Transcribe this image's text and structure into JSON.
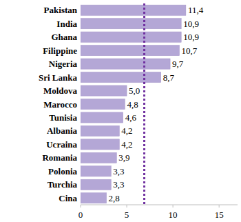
{
  "chart_data": {
    "type": "bar",
    "orientation": "horizontal",
    "categories": [
      "Pakistan",
      "India",
      "Ghana",
      "Filippine",
      "Nigeria",
      "Sri Lanka",
      "Moldova",
      "Marocco",
      "Tunisia",
      "Albania",
      "Ucraina",
      "Romania",
      "Polonia",
      "Turchia",
      "Cina"
    ],
    "values": [
      11.4,
      10.9,
      10.9,
      10.7,
      9.7,
      8.7,
      5.0,
      4.8,
      4.6,
      4.2,
      4.2,
      3.9,
      3.3,
      3.3,
      2.8
    ],
    "value_labels": [
      "11,4",
      "10,9",
      "10,9",
      "10,7",
      "9,7",
      "8,7",
      "5,0",
      "4,8",
      "4,6",
      "4,2",
      "4,2",
      "3,9",
      "3,3",
      "3,3",
      "2,8"
    ],
    "color": "#b4a7d6",
    "data_labels": true,
    "xlim": [
      0,
      17
    ],
    "xticks": [
      0,
      5,
      10,
      15
    ],
    "grid": false,
    "reference_line": 6.9
  }
}
